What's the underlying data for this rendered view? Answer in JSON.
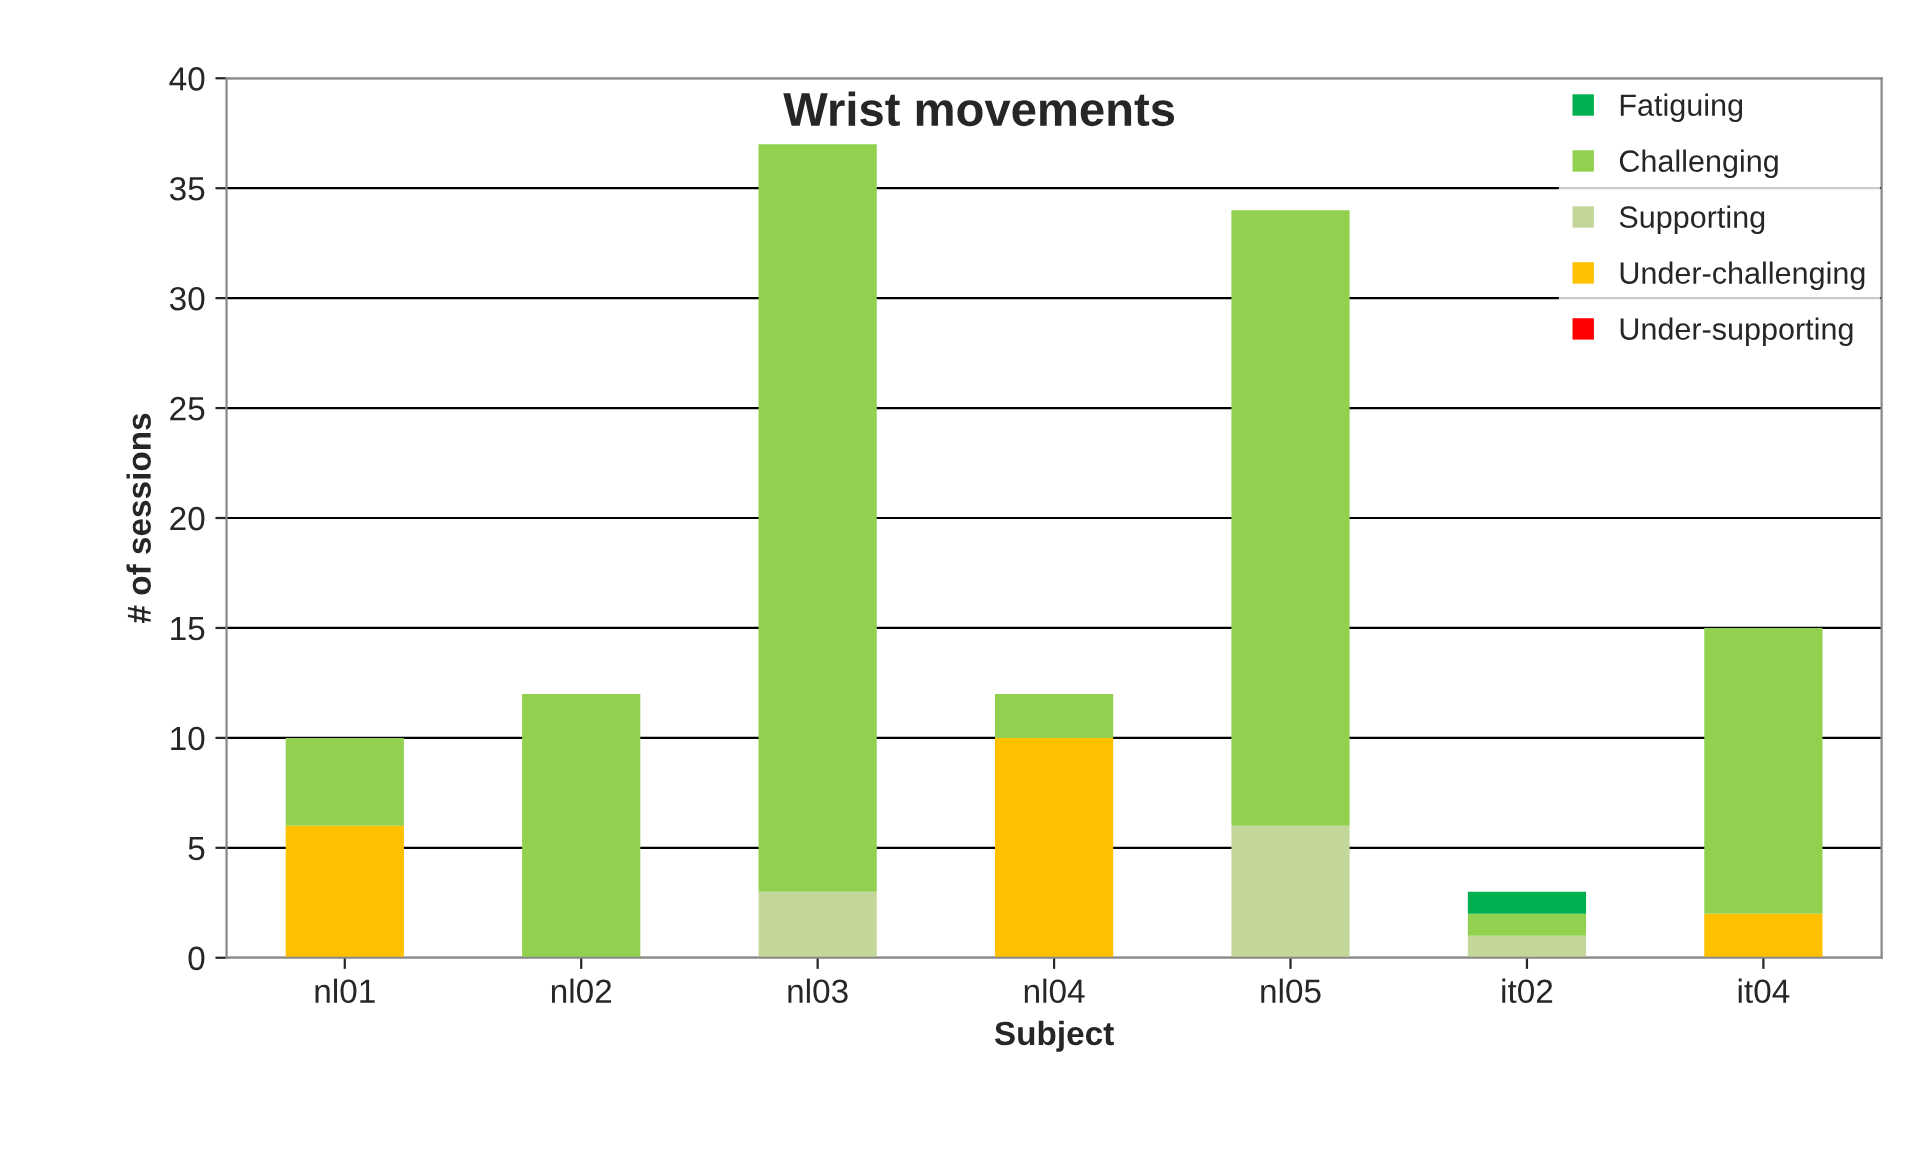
{
  "chart_data": {
    "type": "bar",
    "title": "Wrist movements",
    "xlabel": "Subject",
    "ylabel": "# of sessions",
    "categories": [
      "nl01",
      "nl02",
      "nl03",
      "nl04",
      "nl05",
      "it02",
      "it04"
    ],
    "stacked": true,
    "series": [
      {
        "name": "Under-supporting",
        "color": "#ff0000",
        "values": [
          0,
          0,
          0,
          0,
          0,
          0,
          0
        ]
      },
      {
        "name": "Under-challenging",
        "color": "#ffc000",
        "values": [
          6,
          0,
          0,
          10,
          0,
          0,
          2
        ]
      },
      {
        "name": "Supporting",
        "color": "#c4d79b",
        "values": [
          0,
          0,
          3,
          0,
          6,
          1,
          0
        ]
      },
      {
        "name": "Challenging",
        "color": "#92d050",
        "values": [
          4,
          12,
          34,
          2,
          28,
          1,
          13
        ]
      },
      {
        "name": "Fatiguing",
        "color": "#00b050",
        "values": [
          0,
          0,
          0,
          0,
          0,
          1,
          0
        ]
      }
    ],
    "ylim": [
      0,
      40
    ],
    "yticks": [
      0,
      5,
      10,
      15,
      20,
      25,
      30,
      35,
      40
    ],
    "grid": "y",
    "legend": "top right"
  }
}
